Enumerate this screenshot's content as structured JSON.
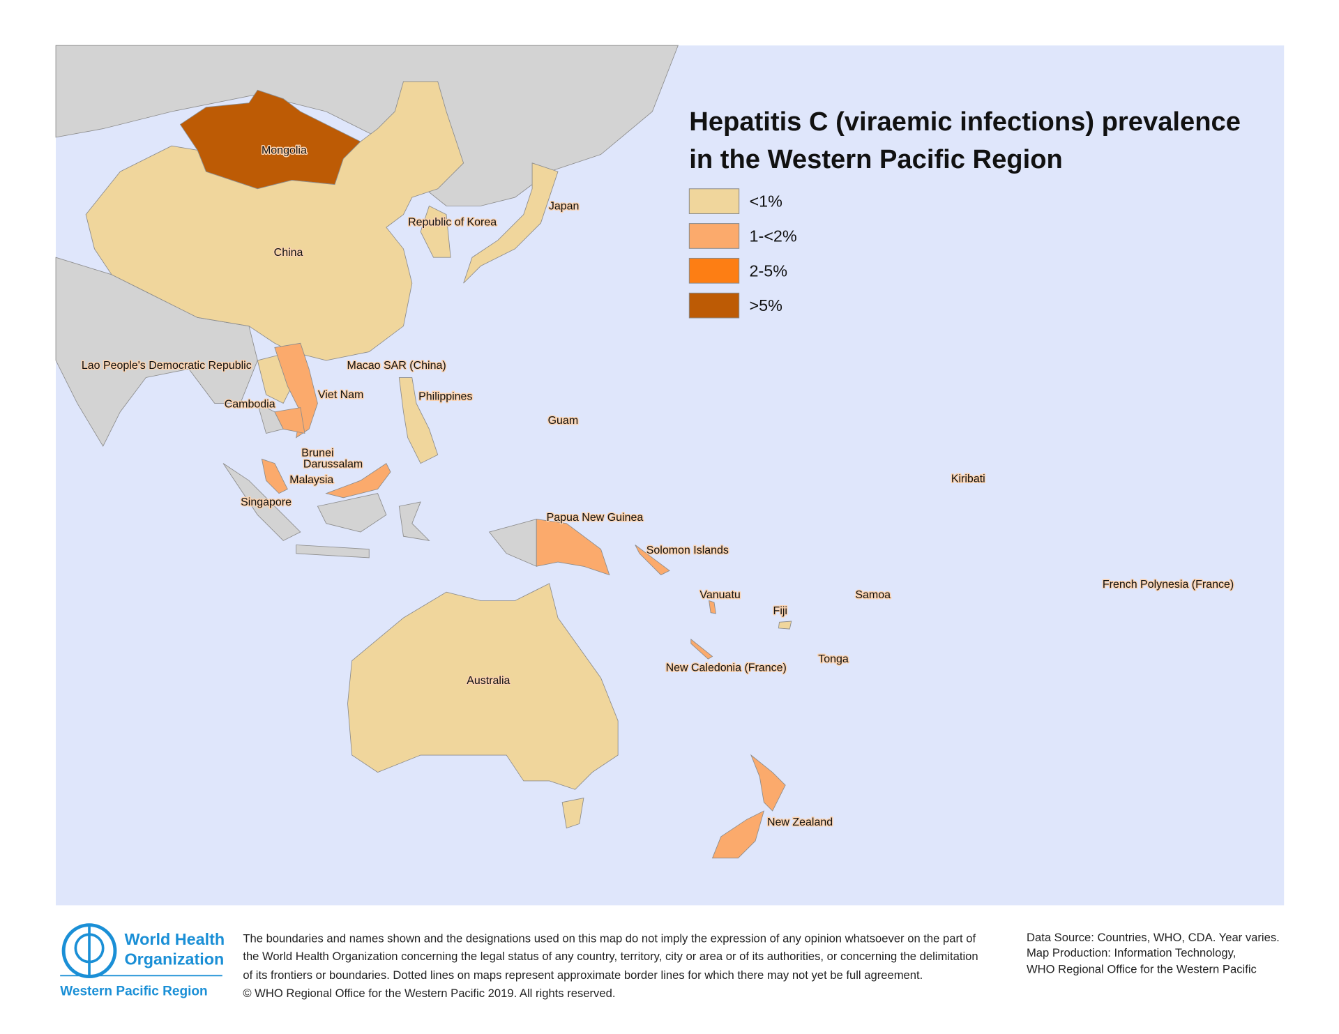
{
  "title": [
    "Hepatitis C (viraemic infections) prevalence",
    "in the Western Pacific Region"
  ],
  "legend": [
    {
      "label": "<1%",
      "color": "#f0d69c"
    },
    {
      "label": "1-<2%",
      "color": "#fbaa6c"
    },
    {
      "label": "2-5%",
      "color": "#fd7e14"
    },
    {
      "label": ">5%",
      "color": "#bd5b05"
    }
  ],
  "land_color": "#d3d3d3",
  "sea_color": "#dfe6fb",
  "labels": [
    "Mongolia",
    "China",
    "Japan",
    "Republic of Korea",
    "Lao People's Democratic Republic",
    "Macao SAR (China)",
    "Viet Nam",
    "Philippines",
    "Cambodia",
    "Guam",
    "Brunei",
    "Darussalam",
    "Malaysia",
    "Singapore",
    "Kiribati",
    "Papua New Guinea",
    "Solomon Islands",
    "Vanuatu",
    "Samoa",
    "French Polynesia (France)",
    "Fiji",
    "Tonga",
    "New Caledonia (France)",
    "Australia",
    "New Zealand"
  ],
  "logo": {
    "line1": "World Health",
    "line2": "Organization",
    "region": "Western Pacific Region"
  },
  "disclaimer": [
    "The boundaries and names shown and the designations used on this map do not imply the expression of any opinion whatsoever on the part of",
    "the World Health Organization concerning the legal status of any country, territory, city or area or of its authorities, or concerning the delimitation",
    "of its frontiers or boundaries.  Dotted lines on maps represent approximate border lines for which there may not yet be full agreement.",
    "© WHO Regional Office for the Western Pacific 2019. All rights reserved."
  ],
  "source": [
    "Data Source: Countries, WHO, CDA. Year varies.",
    "Map Production:  Information Technology,",
    "WHO Regional Office for the Western Pacific"
  ]
}
